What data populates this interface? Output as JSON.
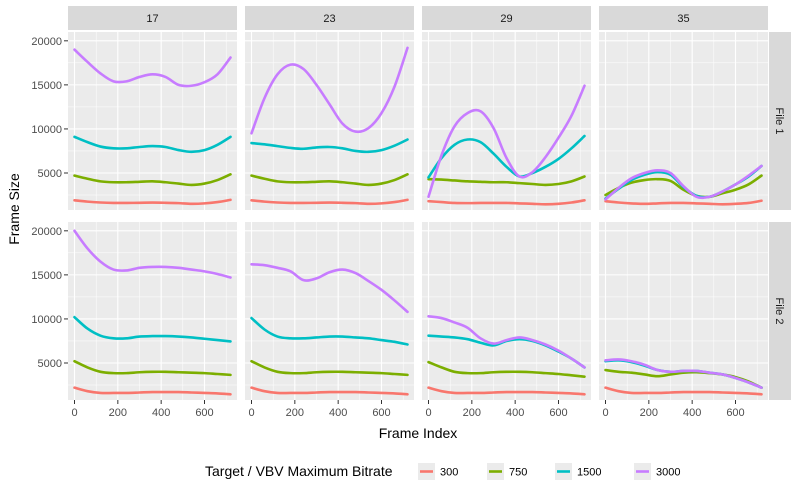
{
  "chart_data": {
    "type": "line",
    "facet_columns": [
      "17",
      "23",
      "29",
      "35"
    ],
    "facet_rows": [
      "File 1",
      "File 2"
    ],
    "xlabel": "Frame Index",
    "ylabel": "Frame Size",
    "xlim": [
      -30,
      750
    ],
    "ylim": [
      800,
      21000
    ],
    "x_ticks": [
      0,
      200,
      400,
      600
    ],
    "y_ticks": [
      5000,
      10000,
      15000,
      20000
    ],
    "grid": true,
    "legend": {
      "title": "Target / VBV Maximum Bitrate",
      "position": "bottom",
      "entries": [
        "300",
        "750",
        "1500",
        "3000"
      ]
    },
    "colors": {
      "300": "#F8766D",
      "750": "#7CAE00",
      "1500": "#00BFC4",
      "3000": "#C77CFF",
      "panel_bg": "#EBEBEB",
      "strip_bg": "#D9D9D9",
      "grid": "#FFFFFF"
    },
    "x": [
      0,
      60,
      120,
      180,
      240,
      300,
      360,
      420,
      480,
      540,
      600,
      660,
      720
    ],
    "panels": [
      {
        "row": "File 1",
        "col": "17",
        "series": [
          {
            "name": "300",
            "values": [
              1900,
              1750,
              1650,
              1600,
              1600,
              1620,
              1640,
              1620,
              1580,
              1500,
              1550,
              1700,
              1950
            ]
          },
          {
            "name": "750",
            "values": [
              4700,
              4350,
              4050,
              3950,
              3950,
              4000,
              4050,
              3950,
              3800,
              3650,
              3800,
              4200,
              4850
            ]
          },
          {
            "name": "1500",
            "values": [
              9100,
              8500,
              8000,
              7800,
              7800,
              7950,
              8050,
              7950,
              7600,
              7400,
              7600,
              8200,
              9100
            ]
          },
          {
            "name": "3000",
            "values": [
              19000,
              17600,
              16300,
              15400,
              15400,
              15900,
              16200,
              15900,
              15000,
              14900,
              15300,
              16200,
              18100
            ]
          }
        ]
      },
      {
        "row": "File 1",
        "col": "23",
        "series": [
          {
            "name": "300",
            "values": [
              1900,
              1750,
              1650,
              1600,
              1600,
              1620,
              1640,
              1620,
              1580,
              1500,
              1550,
              1700,
              1950
            ]
          },
          {
            "name": "750",
            "values": [
              4700,
              4350,
              4050,
              3950,
              3950,
              4000,
              4050,
              3950,
              3800,
              3650,
              3800,
              4200,
              4850
            ]
          },
          {
            "name": "1500",
            "values": [
              8400,
              8250,
              8050,
              7850,
              7750,
              7900,
              7950,
              7800,
              7500,
              7400,
              7600,
              8100,
              8800
            ]
          },
          {
            "name": "3000",
            "values": [
              9500,
              13500,
              16200,
              17300,
              16800,
              15000,
              12800,
              10600,
              9700,
              10100,
              11800,
              14800,
              19200
            ]
          }
        ]
      },
      {
        "row": "File 1",
        "col": "29",
        "series": [
          {
            "name": "300",
            "values": [
              1800,
              1700,
              1600,
              1580,
              1600,
              1600,
              1600,
              1550,
              1500,
              1450,
              1500,
              1650,
              1900
            ]
          },
          {
            "name": "750",
            "values": [
              4300,
              4250,
              4150,
              4050,
              4000,
              3950,
              3950,
              3850,
              3750,
              3650,
              3750,
              4050,
              4600
            ]
          },
          {
            "name": "1500",
            "values": [
              4500,
              6700,
              8200,
              8800,
              8500,
              7200,
              5700,
              4600,
              5000,
              5700,
              6600,
              7800,
              9200
            ]
          },
          {
            "name": "3000",
            "values": [
              2300,
              7000,
              10300,
              11800,
              12000,
              10100,
              6700,
              4600,
              5100,
              6800,
              9000,
              11500,
              14900
            ]
          }
        ]
      },
      {
        "row": "File 1",
        "col": "35",
        "series": [
          {
            "name": "300",
            "values": [
              1800,
              1650,
              1550,
              1500,
              1550,
              1600,
              1600,
              1550,
              1500,
              1450,
              1500,
              1600,
              1850
            ]
          },
          {
            "name": "750",
            "values": [
              2500,
              3300,
              3900,
              4200,
              4300,
              4100,
              3100,
              2400,
              2300,
              2700,
              3100,
              3700,
              4700
            ]
          },
          {
            "name": "1500",
            "values": [
              2100,
              3200,
              4200,
              4800,
              5100,
              4800,
              3400,
              2400,
              2300,
              2900,
              3700,
              4600,
              5800
            ]
          },
          {
            "name": "3000",
            "values": [
              2000,
              3300,
              4400,
              5000,
              5300,
              5000,
              3500,
              2300,
              2300,
              2900,
              3700,
              4700,
              5800
            ]
          }
        ]
      },
      {
        "row": "File 2",
        "col": "17",
        "series": [
          {
            "name": "300",
            "values": [
              2200,
              1800,
              1600,
              1600,
              1600,
              1650,
              1700,
              1700,
              1700,
              1650,
              1600,
              1550,
              1450
            ]
          },
          {
            "name": "750",
            "values": [
              5200,
              4500,
              4000,
              3850,
              3850,
              3950,
              4000,
              4000,
              3950,
              3900,
              3850,
              3750,
              3650
            ]
          },
          {
            "name": "1500",
            "values": [
              10200,
              8900,
              8100,
              7800,
              7800,
              8000,
              8050,
              8050,
              8000,
              7900,
              7750,
              7600,
              7450
            ]
          },
          {
            "name": "3000",
            "values": [
              20000,
              18000,
              16500,
              15600,
              15500,
              15800,
              15900,
              15900,
              15800,
              15600,
              15400,
              15100,
              14700
            ]
          }
        ]
      },
      {
        "row": "File 2",
        "col": "23",
        "series": [
          {
            "name": "300",
            "values": [
              2200,
              1800,
              1600,
              1600,
              1600,
              1650,
              1700,
              1700,
              1700,
              1650,
              1600,
              1550,
              1450
            ]
          },
          {
            "name": "750",
            "values": [
              5200,
              4500,
              4000,
              3850,
              3850,
              3950,
              4000,
              4000,
              3950,
              3900,
              3850,
              3750,
              3650
            ]
          },
          {
            "name": "1500",
            "values": [
              10100,
              8800,
              8000,
              7800,
              7800,
              7900,
              8000,
              8000,
              7900,
              7800,
              7600,
              7400,
              7100
            ]
          },
          {
            "name": "3000",
            "values": [
              16200,
              16100,
              15800,
              15400,
              14400,
              14600,
              15300,
              15600,
              15200,
              14300,
              13300,
              12100,
              10800
            ]
          }
        ]
      },
      {
        "row": "File 2",
        "col": "29",
        "series": [
          {
            "name": "300",
            "values": [
              2200,
              1800,
              1600,
              1600,
              1600,
              1650,
              1700,
              1700,
              1700,
              1650,
              1600,
              1550,
              1450
            ]
          },
          {
            "name": "750",
            "values": [
              5100,
              4500,
              4000,
              3850,
              3850,
              3950,
              4000,
              4000,
              3950,
              3850,
              3750,
              3600,
              3450
            ]
          },
          {
            "name": "1500",
            "values": [
              8100,
              8000,
              7900,
              7700,
              7300,
              7000,
              7500,
              7700,
              7500,
              7000,
              6300,
              5500,
              4500
            ]
          },
          {
            "name": "3000",
            "values": [
              10300,
              10100,
              9600,
              9000,
              7800,
              7200,
              7600,
              7900,
              7600,
              7100,
              6400,
              5500,
              4500
            ]
          }
        ]
      },
      {
        "row": "File 2",
        "col": "35",
        "series": [
          {
            "name": "300",
            "values": [
              2200,
              1800,
              1600,
              1600,
              1600,
              1650,
              1700,
              1700,
              1700,
              1650,
              1600,
              1550,
              1450
            ]
          },
          {
            "name": "750",
            "values": [
              4200,
              4000,
              3900,
              3700,
              3500,
              3700,
              3900,
              3950,
              3850,
              3700,
              3400,
              2900,
              2200
            ]
          },
          {
            "name": "1500",
            "values": [
              5200,
              5300,
              5100,
              4700,
              4200,
              4000,
              4100,
              4100,
              3900,
              3700,
              3300,
              2800,
              2200
            ]
          },
          {
            "name": "3000",
            "values": [
              5300,
              5400,
              5200,
              4800,
              4200,
              4000,
              4100,
              4100,
              3900,
              3700,
              3300,
              2800,
              2200
            ]
          }
        ]
      }
    ]
  }
}
